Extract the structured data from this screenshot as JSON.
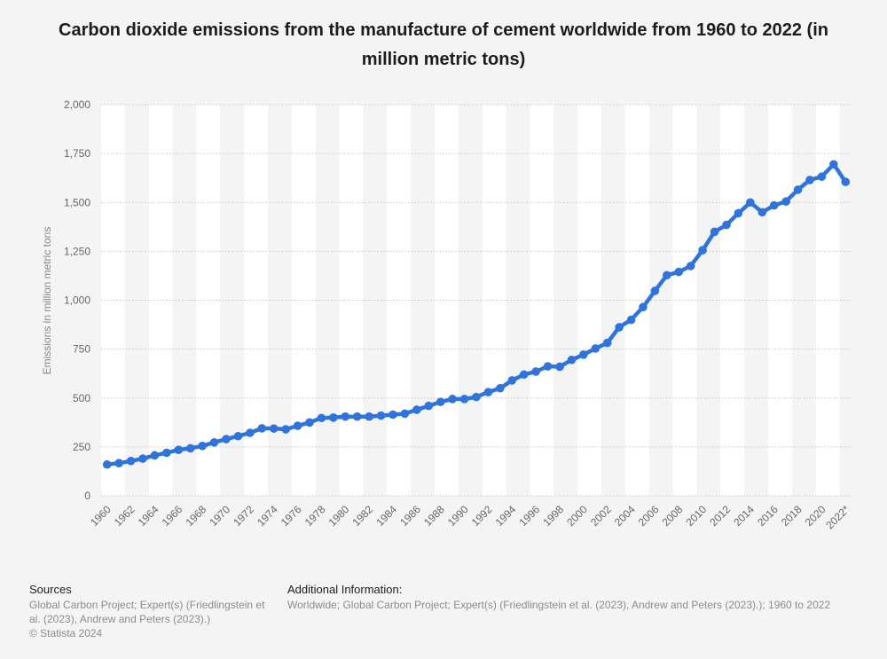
{
  "chart_data": {
    "type": "line",
    "title": "Carbon dioxide emissions from the manufacture of cement worldwide from 1960 to 2022 (in million metric tons)",
    "ylabel": "Emissions in million metric tons",
    "xlabel": "",
    "ylim": [
      0,
      2000
    ],
    "yticks": [
      0,
      250,
      500,
      750,
      1000,
      1250,
      1500,
      1750,
      2000
    ],
    "ytick_labels": [
      "0",
      "250",
      "500",
      "750",
      "1,000",
      "1,250",
      "1,500",
      "1,750",
      "2,000"
    ],
    "categories": [
      "1960",
      "1961",
      "1962",
      "1963",
      "1964",
      "1965",
      "1966",
      "1967",
      "1968",
      "1969",
      "1970",
      "1971",
      "1972",
      "1973",
      "1974",
      "1975",
      "1976",
      "1977",
      "1978",
      "1979",
      "1980",
      "1981",
      "1982",
      "1983",
      "1984",
      "1985",
      "1986",
      "1987",
      "1988",
      "1989",
      "1990",
      "1991",
      "1992",
      "1993",
      "1994",
      "1995",
      "1996",
      "1997",
      "1998",
      "1999",
      "2000",
      "2001",
      "2002",
      "2003",
      "2004",
      "2005",
      "2006",
      "2007",
      "2008",
      "2009",
      "2010",
      "2011",
      "2012",
      "2013",
      "2014",
      "2015",
      "2016",
      "2017",
      "2018",
      "2019",
      "2020",
      "2021",
      "2022*"
    ],
    "x_tick_labels": [
      "1960",
      "1962",
      "1964",
      "1966",
      "1968",
      "1970",
      "1972",
      "1974",
      "1976",
      "1978",
      "1980",
      "1982",
      "1984",
      "1986",
      "1988",
      "1990",
      "1992",
      "1994",
      "1996",
      "1998",
      "2000",
      "2002",
      "2004",
      "2006",
      "2008",
      "2010",
      "2012",
      "2014",
      "2016",
      "2018",
      "2020",
      "2022*"
    ],
    "series": [
      {
        "values": [
          160,
          167,
          178,
          190,
          207,
          220,
          235,
          243,
          255,
          273,
          290,
          305,
          322,
          345,
          344,
          340,
          358,
          375,
          398,
          400,
          405,
          405,
          405,
          410,
          415,
          420,
          440,
          460,
          480,
          495,
          495,
          505,
          530,
          550,
          590,
          620,
          635,
          662,
          660,
          695,
          722,
          753,
          782,
          862,
          900,
          965,
          1048,
          1128,
          1145,
          1175,
          1256,
          1350,
          1385,
          1445,
          1500,
          1450,
          1485,
          1505,
          1565,
          1615,
          1632,
          1695,
          1605
        ]
      }
    ],
    "colors": {
      "line": "#2f74dc",
      "band": "#ffffff",
      "grid": "#c8c8c8",
      "tick_text": "#666666"
    },
    "grid": true,
    "legend": "none"
  },
  "footer": {
    "sources_heading": "Sources",
    "sources_lines": [
      "Global Carbon Project; Expert(s) (Friedlingstein et",
      "al. (2023), Andrew and Peters (2023).)",
      "© Statista 2024"
    ],
    "additional_heading": "Additional Information:",
    "additional_text": "Worldwide; Global Carbon Project; Expert(s) (Friedlingstein et al. (2023), Andrew and Peters (2023).); 1960 to 2022"
  }
}
